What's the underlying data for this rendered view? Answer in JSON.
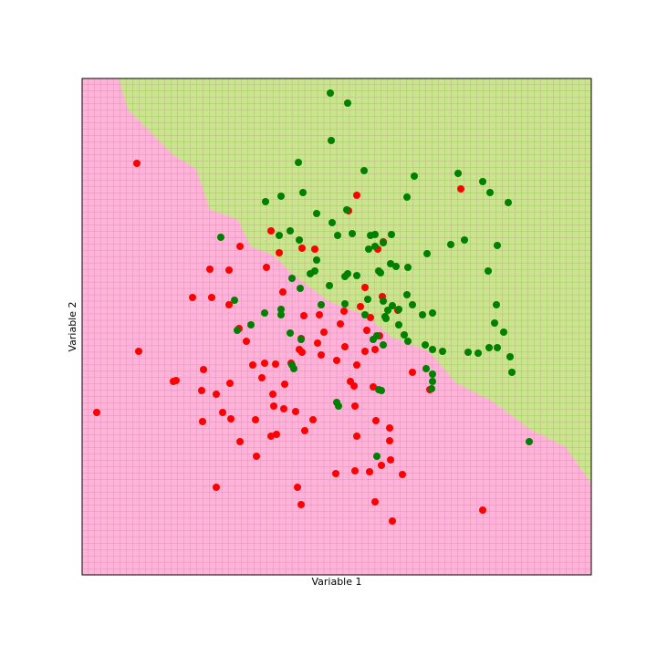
{
  "chart_data": {
    "type": "scatter",
    "x_label": "Variable 1",
    "y_label": "Variable 2",
    "xlim": [
      0,
      558
    ],
    "ylim": [
      0,
      544
    ],
    "region_colors": {
      "below": "#ffb3d9",
      "above": "#c9e68c"
    },
    "decision_boundary": {
      "x": [
        40,
        50,
        100,
        125,
        140,
        170,
        185,
        210,
        230,
        270,
        310,
        340,
        380,
        410,
        450,
        490,
        530,
        558
      ],
      "y": [
        544,
        510,
        460,
        445,
        400,
        390,
        360,
        350,
        330,
        300,
        285,
        260,
        245,
        210,
        190,
        160,
        140,
        100
      ]
    },
    "series": [
      {
        "color": "#ff0000",
        "x": [
          60,
          301,
          292,
          415,
          207,
          173,
          241,
          255,
          216,
          324,
          330,
          202,
          140,
          161,
          220,
          310,
          121,
          142,
          161,
          329,
          287,
          305,
          346,
          316,
          243,
          260,
          172,
          180,
          283,
          265,
          312,
          326,
          240,
          62,
          238,
          258,
          288,
          310,
          321,
          200,
          187,
          212,
          229,
          241,
          262,
          279,
          301,
          362,
          103,
          100,
          133,
          197,
          222,
          162,
          131,
          147,
          209,
          294,
          298,
          319,
          381,
          16,
          154,
          163,
          132,
          190,
          210,
          221,
          234,
          253,
          299,
          322,
          337,
          244,
          173,
          207,
          213,
          301,
          337,
          191,
          338,
          328,
          278,
          299,
          315,
          351,
          147,
          236,
          439,
          240,
          321,
          340
        ],
        "y": [
          451,
          416,
          399,
          423,
          377,
          360,
          358,
          357,
          353,
          357,
          365,
          337,
          335,
          334,
          310,
          315,
          304,
          304,
          296,
          305,
          289,
          294,
          290,
          282,
          284,
          285,
          270,
          256,
          275,
          266,
          268,
          262,
          259,
          245,
          247,
          254,
          250,
          245,
          247,
          232,
          230,
          231,
          232,
          244,
          241,
          235,
          230,
          222,
          213,
          212,
          225,
          216,
          209,
          210,
          202,
          198,
          198,
          212,
          207,
          206,
          203,
          178,
          178,
          171,
          168,
          170,
          185,
          182,
          179,
          170,
          185,
          169,
          161,
          158,
          146,
          152,
          154,
          152,
          147,
          130,
          126,
          120,
          111,
          114,
          113,
          110,
          96,
          96,
          71,
          77,
          80,
          59
        ]
      },
      {
        "color": "#008000",
        "x": [
          272,
          291,
          273,
          237,
          309,
          364,
          412,
          439,
          447,
          467,
          201,
          218,
          242,
          356,
          257,
          274,
          290,
          216,
          228,
          238,
          280,
          296,
          316,
          321,
          339,
          330,
          314,
          321,
          404,
          419,
          455,
          152,
          257,
          378,
          445,
          230,
          250,
          255,
          288,
          291,
          301,
          325,
          327,
          338,
          344,
          357,
          167,
          271,
          239,
          356,
          185,
          218,
          218,
          200,
          262,
          288,
          313,
          330,
          335,
          340,
          332,
          310,
          333,
          347,
          362,
          373,
          384,
          454,
          452,
          347,
          462,
          170,
          228,
          240,
          319,
          330,
          323,
          353,
          357,
          376,
          384,
          395,
          423,
          434,
          446,
          455,
          469,
          471,
          377,
          384,
          384,
          383,
          325,
          328,
          230,
          232,
          279,
          281,
          323,
          490
        ],
        "y": [
          528,
          517,
          476,
          452,
          443,
          437,
          440,
          431,
          419,
          408,
          409,
          415,
          419,
          414,
          396,
          386,
          400,
          372,
          377,
          367,
          372,
          374,
          372,
          373,
          373,
          364,
          357,
          360,
          362,
          367,
          361,
          370,
          345,
          352,
          333,
          325,
          330,
          333,
          327,
          330,
          328,
          333,
          331,
          341,
          338,
          337,
          301,
          317,
          314,
          307,
          274,
          291,
          285,
          287,
          296,
          297,
          302,
          300,
          290,
          295,
          283,
          285,
          281,
          291,
          296,
          285,
          287,
          296,
          276,
          274,
          266,
          268,
          265,
          258,
          258,
          252,
          262,
          263,
          256,
          252,
          247,
          245,
          244,
          243,
          249,
          249,
          239,
          222,
          226,
          220,
          212,
          204,
          203,
          202,
          230,
          226,
          189,
          185,
          130,
          146
        ]
      }
    ]
  }
}
